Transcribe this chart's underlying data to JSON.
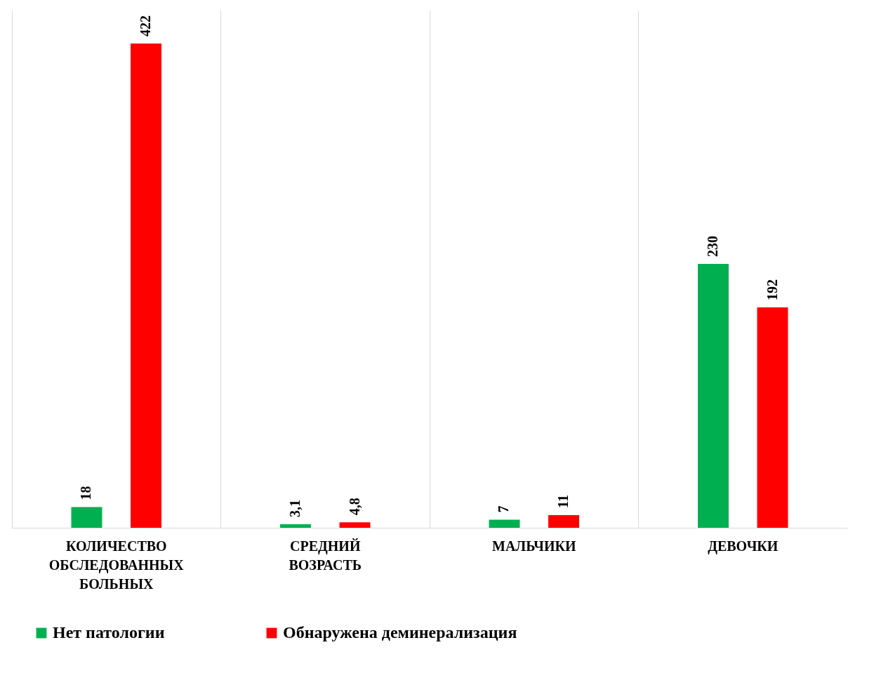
{
  "chart_data": {
    "type": "bar",
    "categories": [
      "КОЛИЧЕСТВО ОБСЛЕДОВАННЫХ БОЛЬНЫХ",
      "СРЕДНИЙ ВОЗРАСТЬ",
      "МАЛЬЧИКИ",
      "ДЕВОЧКИ"
    ],
    "series": [
      {
        "name": "Нет патологии",
        "color": "#00b050",
        "values": [
          18,
          3.1,
          7,
          230
        ],
        "value_labels": [
          "18",
          "3,1",
          "7",
          "230"
        ]
      },
      {
        "name": "Обнаружена деминерализация",
        "color": "#ff0000",
        "values": [
          422,
          4.8,
          11,
          192
        ],
        "value_labels": [
          "422",
          "4,8",
          "11",
          "192"
        ]
      }
    ],
    "grid": "x",
    "legend": "bottom"
  }
}
